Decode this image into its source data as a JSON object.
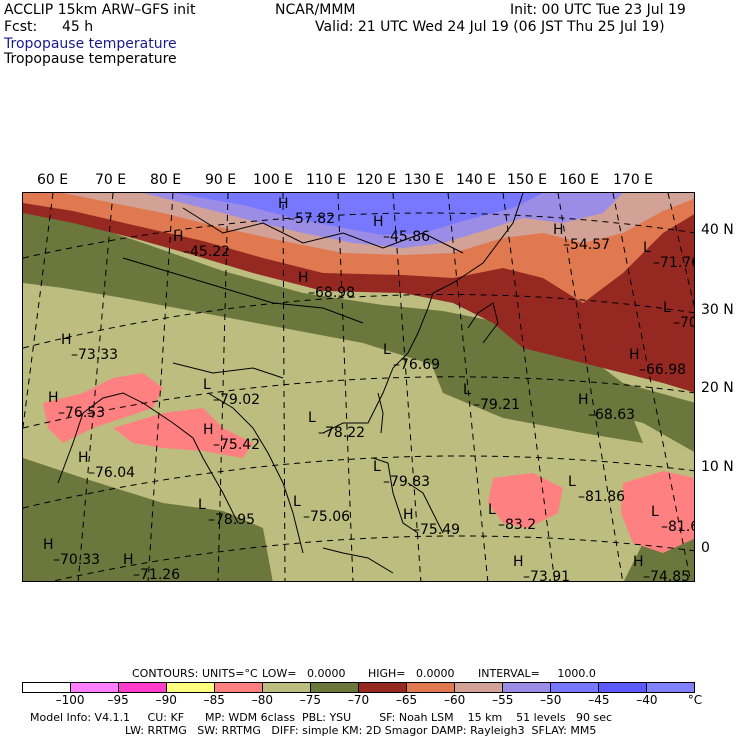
{
  "header": {
    "model": "ACCLIP 15km ARW–GFS init",
    "center": "NCAR/MMM",
    "init": "Init: 00 UTC Tue 23 Jul 19",
    "fcst_label": "Fcst:",
    "fcst_value": "45 h",
    "valid": "Valid: 21 UTC Wed 24 Jul 19 (06 JST Thu 25 Jul 19)",
    "field_title_1": "Tropopause temperature",
    "field_title_2": "Tropopause temperature",
    "field_title_1_color": "#1a1a8c"
  },
  "map": {
    "lon_labels": [
      "60 E",
      "70 E",
      "80 E",
      "90 E",
      "100 E",
      "110 E",
      "120 E",
      "130 E",
      "140 E",
      "150 E",
      "160 E",
      "170 E"
    ],
    "lat_labels": [
      "40 N",
      "30 N",
      "20 N",
      "10 N",
      "0"
    ],
    "extrema": [
      {
        "type": "H",
        "value": "–57.82"
      },
      {
        "type": "H",
        "value": "–45.22"
      },
      {
        "type": "H",
        "value": "–45.86"
      },
      {
        "type": "H",
        "value": "–54.57"
      },
      {
        "type": "L",
        "value": "–71.76"
      },
      {
        "type": "H",
        "value": "–68.98"
      },
      {
        "type": "L",
        "value": "–70"
      },
      {
        "type": "H",
        "value": "–73.33"
      },
      {
        "type": "L",
        "value": "–76.69"
      },
      {
        "type": "H",
        "value": "–66.98"
      },
      {
        "type": "H",
        "value": "–76.53"
      },
      {
        "type": "L",
        "value": "–79.02"
      },
      {
        "type": "L",
        "value": "–79.21"
      },
      {
        "type": "H",
        "value": "–68.63"
      },
      {
        "type": "H",
        "value": "–75.42"
      },
      {
        "type": "L",
        "value": "–78.22"
      },
      {
        "type": "H",
        "value": "–76.04"
      },
      {
        "type": "L",
        "value": "–79.83"
      },
      {
        "type": "L",
        "value": "–81.86"
      },
      {
        "type": "L",
        "value": "–78.95"
      },
      {
        "type": "L",
        "value": "–75.06"
      },
      {
        "type": "H",
        "value": "–75.49"
      },
      {
        "type": "L",
        "value": "–83.2"
      },
      {
        "type": "L",
        "value": "–81.6"
      },
      {
        "type": "H",
        "value": "–70.33"
      },
      {
        "type": "H",
        "value": "–71.26"
      },
      {
        "type": "H",
        "value": "–73.91"
      },
      {
        "type": "H",
        "value": "–74.85"
      }
    ]
  },
  "colorbar": {
    "colors": [
      "#ffffff",
      "#ff80ff",
      "#ff3ccc",
      "#ffff80",
      "#ff8080",
      "#bdbd80",
      "#6b773c",
      "#962822",
      "#e07850",
      "#d2a296",
      "#9b8ce6",
      "#7878ff",
      "#5a5aff",
      "#8282ff"
    ],
    "tick_labels": [
      "–100",
      "–95",
      "–90",
      "–85",
      "–80",
      "–75",
      "–70",
      "–65",
      "–60",
      "–55",
      "–50",
      "–45",
      "–40"
    ],
    "unit": "°C"
  },
  "contour_info": {
    "contours": "CONTOURS:",
    "units": "UNITS=°C",
    "low": "LOW=   0.0000",
    "high": "HIGH=   0.0000",
    "interval": "INTERVAL=     1000.0"
  },
  "footer": {
    "line1": "Model Info: V4.1.1     CU: KF      MP: WDM 6class  PBL: YSU        SF: Noah LSM    15 km    51 levels   90 sec",
    "line2": "LW: RRTMG   SW: RRTMG   DIFF: simple KM: 2D Smagor DAMP: Rayleigh3  SFLAY: MM5"
  }
}
